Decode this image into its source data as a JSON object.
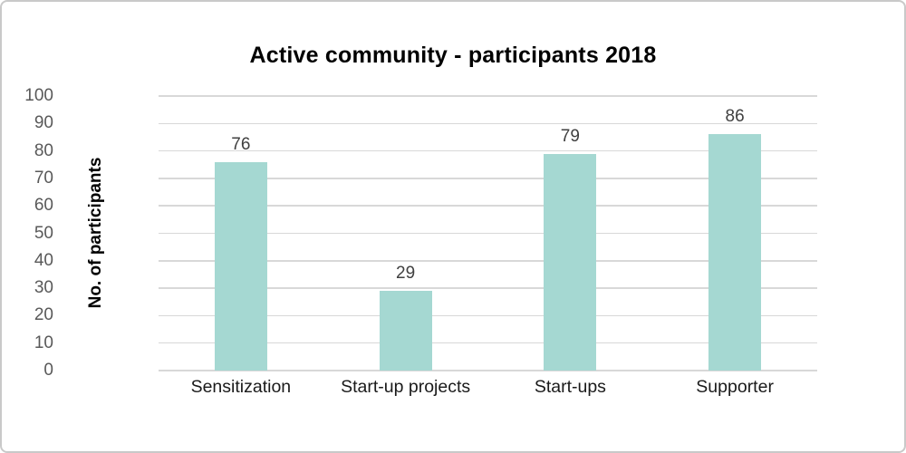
{
  "chart_data": {
    "type": "bar",
    "title": "Active community - participants 2018",
    "categories": [
      "Sensitization",
      "Start-up projects",
      "Start-ups",
      "Supporter"
    ],
    "values": [
      76,
      29,
      79,
      86
    ],
    "xlabel": "",
    "ylabel": "No. of participants",
    "ylim": [
      0,
      100
    ],
    "ytick_step": 10,
    "yticks": [
      0,
      10,
      20,
      30,
      40,
      50,
      60,
      70,
      80,
      90,
      100
    ],
    "grid": true,
    "legend": false,
    "bar_color": "#a5d8d2",
    "gridline_color": "#d8d8d8",
    "tick_label_color": "#595959",
    "value_label_color": "#404040",
    "category_label_color": "#1a1a1a",
    "frame_border_color": "#c9c9c9"
  }
}
